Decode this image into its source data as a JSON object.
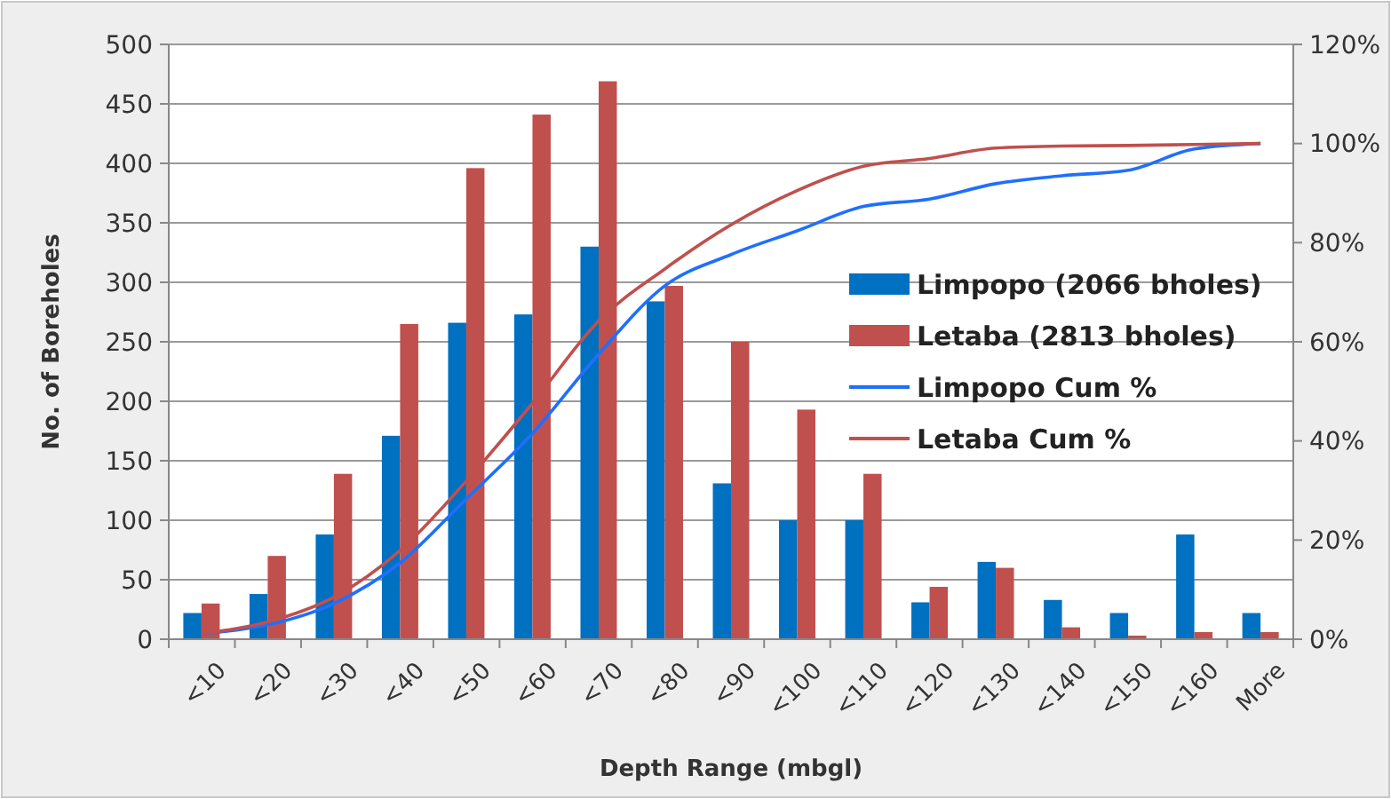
{
  "chart_data": {
    "type": "bar",
    "xlabel": "Depth Range (mbgl)",
    "ylabel": "No. of Boreholes",
    "categories": [
      "<10",
      "<20",
      "<30",
      "<40",
      "<50",
      "<60",
      "<70",
      "<80",
      "<90",
      "<100",
      "<110",
      "<120",
      "<130",
      "<140",
      "<150",
      "<160",
      "More"
    ],
    "series": [
      {
        "name": "Limpopo (2066 bholes)",
        "color": "#0070c0",
        "values": [
          22,
          38,
          88,
          171,
          266,
          273,
          330,
          284,
          131,
          100,
          100,
          31,
          65,
          33,
          22,
          88,
          22
        ]
      },
      {
        "name": "Letaba (2813 bholes)",
        "color": "#c0504d",
        "values": [
          30,
          70,
          139,
          265,
          396,
          441,
          469,
          297,
          250,
          193,
          139,
          44,
          60,
          10,
          3,
          6,
          6
        ]
      },
      {
        "name": "Limpopo Cum %",
        "type": "line",
        "axis": "y2",
        "color": "#1f6fff",
        "values": [
          1.1,
          2.9,
          7.2,
          15.4,
          28.3,
          41.5,
          57.5,
          71.3,
          77.6,
          82.4,
          87.3,
          88.8,
          91.9,
          93.5,
          94.6,
          98.9,
          100
        ]
      },
      {
        "name": "Letaba Cum %",
        "type": "line",
        "axis": "y2",
        "color": "#c0504d",
        "values": [
          1.1,
          3.5,
          8.5,
          17.9,
          31.9,
          47.6,
          64.2,
          74.7,
          83.6,
          90.5,
          95.4,
          97,
          99.1,
          99.5,
          99.6,
          99.8,
          100
        ]
      }
    ],
    "ylim": [
      0,
      500
    ],
    "yticks": [
      0,
      50,
      100,
      150,
      200,
      250,
      300,
      350,
      400,
      450,
      500
    ],
    "y2lim": [
      0,
      120
    ],
    "y2ticks": [
      {
        "value": 0,
        "label": "0%"
      },
      {
        "value": 20,
        "label": "20%"
      },
      {
        "value": 40,
        "label": "40%"
      },
      {
        "value": 60,
        "label": "60%"
      },
      {
        "value": 80,
        "label": "80%"
      },
      {
        "value": 100,
        "label": "100%"
      },
      {
        "value": 120,
        "label": "120%"
      }
    ],
    "grid": "y",
    "legend": "right",
    "marker": "none"
  }
}
